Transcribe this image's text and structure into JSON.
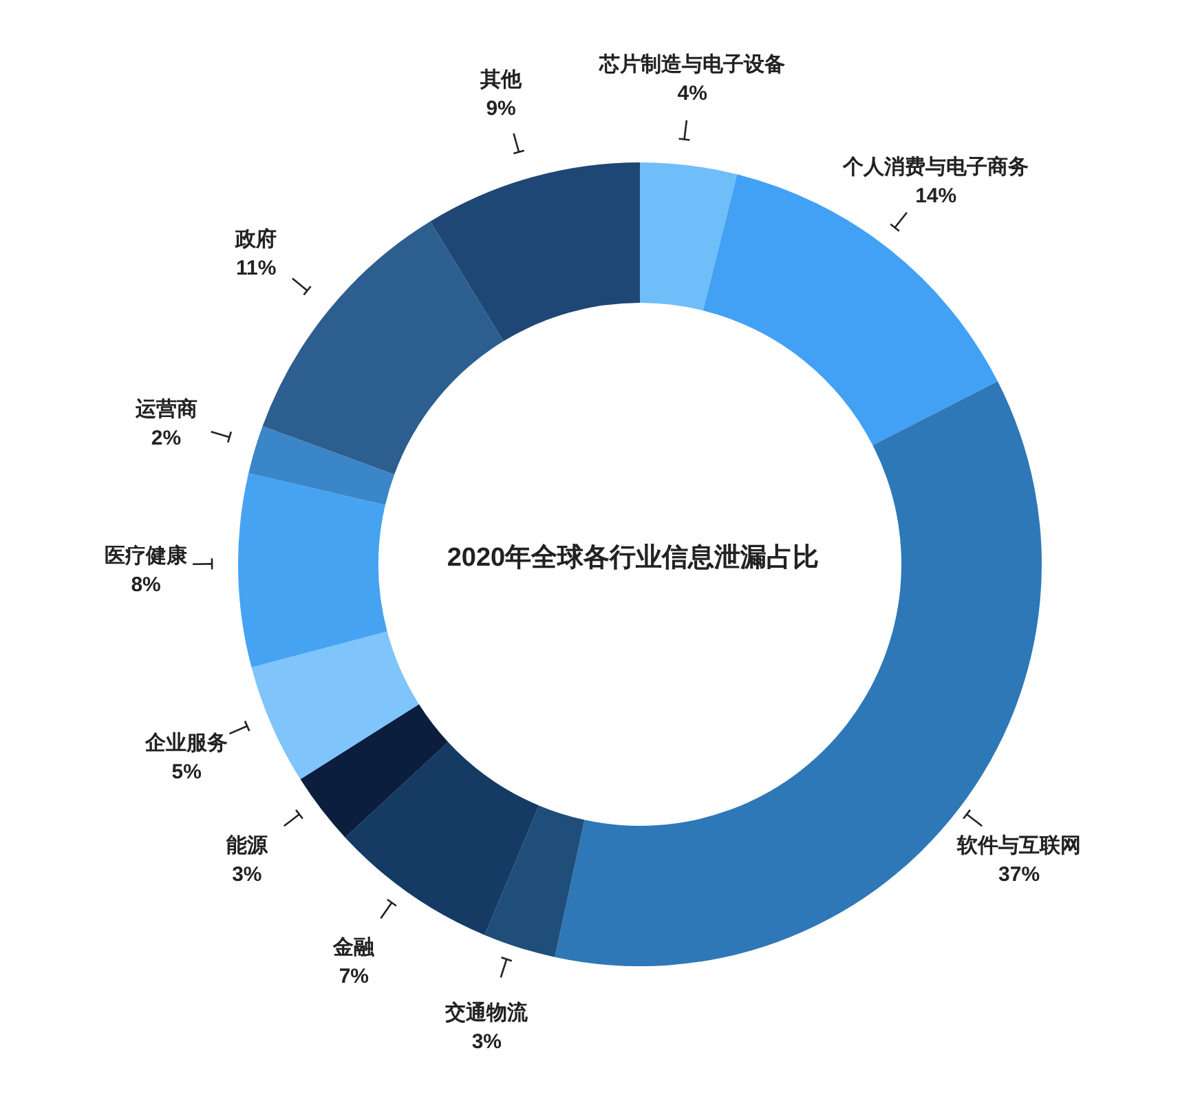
{
  "chart_data": {
    "type": "donut",
    "title": "2020年全球各行业信息泄漏占比",
    "categories": [
      "芯片制造与电子设备",
      "个人消费与电子商务",
      "软件与互联网",
      "交通物流",
      "金融",
      "能源",
      "企业服务",
      "医疗健康",
      "运营商",
      "政府",
      "其他"
    ],
    "values": [
      4,
      14,
      37,
      3,
      7,
      3,
      5,
      8,
      2,
      11,
      9
    ],
    "value_labels": [
      "4%",
      "14%",
      "37%",
      "3%",
      "7%",
      "3%",
      "5%",
      "8%",
      "2%",
      "11%",
      "9%"
    ],
    "colors": [
      "#6fbef9",
      "#42a1f5",
      "#2e78b8",
      "#1f4e7a",
      "#153a63",
      "#0b1e3d",
      "#7fc4fa",
      "#45a3f2",
      "#3a86c8",
      "#2c5f8f",
      "#1f4775"
    ],
    "legend": false
  }
}
